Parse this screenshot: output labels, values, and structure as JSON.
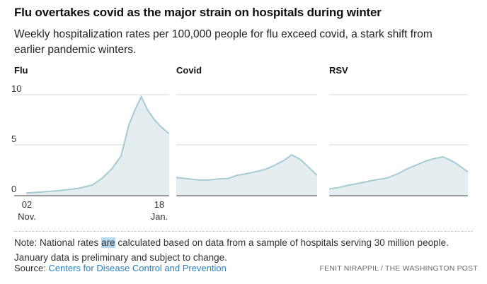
{
  "header": {
    "title": "Flu overtakes covid as the major strain on hospitals during winter",
    "subtitle": "Weekly hospitalization rates per 100,000 people for flu exceed covid, a stark shift from earlier pandemic winters."
  },
  "colors": {
    "area_fill": "#e4eef0",
    "area_line": "#a8cad1",
    "gridline": "#d9d9d9",
    "baseline": "#9c9c9c",
    "link_blue": "#2a80c2",
    "selection_highlight": "#b5d7f0",
    "title_text": "#111111",
    "body_text": "#333333",
    "byline_text": "#6b6b6b"
  },
  "chart_data": [
    {
      "type": "area",
      "title": "Flu",
      "ylim": [
        0,
        10
      ],
      "yticks": [
        0,
        5,
        10
      ],
      "ytick_labels": [
        "10",
        "5",
        "0"
      ],
      "gridlines": [
        10,
        5
      ],
      "xtick_labels": [
        [
          "02",
          "Nov."
        ],
        [
          "18",
          "Jan."
        ]
      ],
      "x_range": [
        "Nov. 02",
        "Jan. 18"
      ],
      "points": [
        [
          0.078,
          0.2
        ],
        [
          0.18,
          0.3
        ],
        [
          0.3,
          0.45
        ],
        [
          0.41,
          0.65
        ],
        [
          0.505,
          1.0
        ],
        [
          0.57,
          1.7
        ],
        [
          0.63,
          2.6
        ],
        [
          0.69,
          3.9
        ],
        [
          0.74,
          7.0
        ],
        [
          0.78,
          8.5
        ],
        [
          0.82,
          9.8
        ],
        [
          0.86,
          8.5
        ],
        [
          0.9,
          7.6
        ],
        [
          0.94,
          6.9
        ],
        [
          1.0,
          6.1
        ]
      ]
    },
    {
      "type": "area",
      "title": "Covid",
      "ylim": [
        0,
        10
      ],
      "yticks": [
        0,
        5,
        10
      ],
      "ytick_labels": [],
      "gridlines": [
        10,
        5
      ],
      "xtick_labels": [],
      "points": [
        [
          0.0,
          1.75
        ],
        [
          0.09,
          1.6
        ],
        [
          0.16,
          1.5
        ],
        [
          0.23,
          1.5
        ],
        [
          0.3,
          1.6
        ],
        [
          0.37,
          1.65
        ],
        [
          0.43,
          1.95
        ],
        [
          0.49,
          2.1
        ],
        [
          0.56,
          2.3
        ],
        [
          0.63,
          2.55
        ],
        [
          0.69,
          2.9
        ],
        [
          0.76,
          3.4
        ],
        [
          0.82,
          4.0
        ],
        [
          0.88,
          3.55
        ],
        [
          0.93,
          2.9
        ],
        [
          1.0,
          1.95
        ]
      ]
    },
    {
      "type": "area",
      "title": "RSV",
      "ylim": [
        0,
        10
      ],
      "yticks": [
        0,
        5,
        10
      ],
      "ytick_labels": [],
      "gridlines": [
        10,
        5
      ],
      "xtick_labels": [],
      "points": [
        [
          0.0,
          0.6
        ],
        [
          0.07,
          0.75
        ],
        [
          0.13,
          0.95
        ],
        [
          0.19,
          1.1
        ],
        [
          0.26,
          1.3
        ],
        [
          0.33,
          1.5
        ],
        [
          0.4,
          1.65
        ],
        [
          0.43,
          1.75
        ],
        [
          0.5,
          2.15
        ],
        [
          0.56,
          2.6
        ],
        [
          0.63,
          3.0
        ],
        [
          0.7,
          3.4
        ],
        [
          0.75,
          3.6
        ],
        [
          0.82,
          3.8
        ],
        [
          0.87,
          3.5
        ],
        [
          0.92,
          3.1
        ],
        [
          1.0,
          2.3
        ]
      ]
    }
  ],
  "footer": {
    "note_prefix": "Note: National rates ",
    "note_highlight": "are",
    "note_suffix": " calculated based on data from a sample of hospitals serving 30 million people. January data is preliminary and subject to change.",
    "source_label": "Source: ",
    "source_link": "Centers for Disease Control and Prevention",
    "byline": "FENIT NIRAPPIL / THE WASHINGTON POST"
  }
}
